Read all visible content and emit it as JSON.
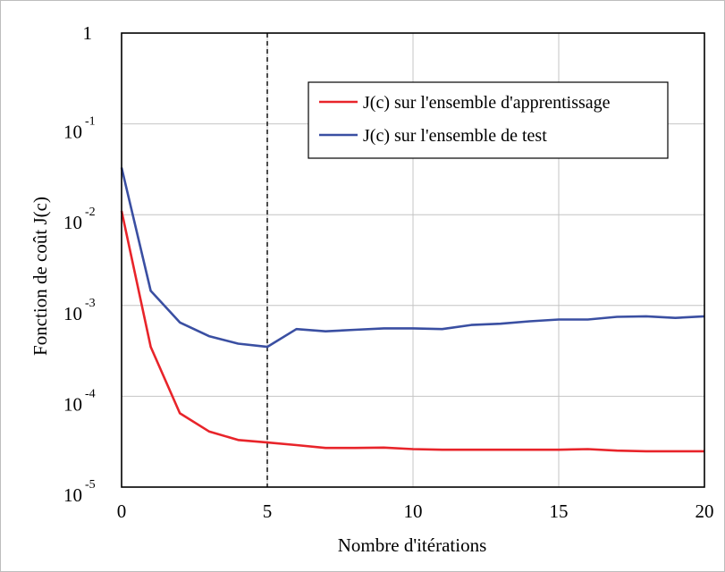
{
  "chart_data": {
    "type": "line",
    "title": "",
    "xlabel": "Nombre d'itérations",
    "ylabel": "Fonction de coût J(c)",
    "xlim": [
      0,
      20
    ],
    "ylim": [
      1e-05,
      1
    ],
    "yscale": "log",
    "grid": true,
    "legend_position": "top-right",
    "x_ticks": [
      0,
      5,
      10,
      15,
      20
    ],
    "y_ticks": [
      {
        "value": 1,
        "base": "1",
        "exp": ""
      },
      {
        "value": 0.1,
        "base": "10",
        "exp": "-1"
      },
      {
        "value": 0.01,
        "base": "10",
        "exp": "-2"
      },
      {
        "value": 0.001,
        "base": "10",
        "exp": "-3"
      },
      {
        "value": 0.0001,
        "base": "10",
        "exp": "-4"
      },
      {
        "value": 1e-05,
        "base": "10",
        "exp": "-5"
      }
    ],
    "vline": {
      "x": 5,
      "style": "dashed",
      "color": "#000000"
    },
    "x": [
      0,
      1,
      2,
      3,
      4,
      5,
      6,
      7,
      8,
      9,
      10,
      11,
      12,
      13,
      14,
      15,
      16,
      17,
      18,
      19,
      20
    ],
    "series": [
      {
        "name": "J(c) sur l'ensemble d'apprentissage",
        "color": "#e8242a",
        "values": [
          0.011,
          0.00035,
          6.5e-05,
          4.1e-05,
          3.3e-05,
          3.1e-05,
          2.9e-05,
          2.7e-05,
          2.7e-05,
          2.72e-05,
          2.62e-05,
          2.58e-05,
          2.58e-05,
          2.58e-05,
          2.58e-05,
          2.58e-05,
          2.62e-05,
          2.52e-05,
          2.48e-05,
          2.48e-05,
          2.48e-05
        ]
      },
      {
        "name": "J(c) sur l'ensemble de test",
        "color": "#3a4fa2",
        "values": [
          0.033,
          0.00145,
          0.00065,
          0.00046,
          0.00038,
          0.00035,
          0.00055,
          0.00052,
          0.00054,
          0.00056,
          0.00056,
          0.00055,
          0.00061,
          0.00063,
          0.00067,
          0.0007,
          0.0007,
          0.00075,
          0.00076,
          0.00073,
          0.00076
        ]
      }
    ]
  }
}
